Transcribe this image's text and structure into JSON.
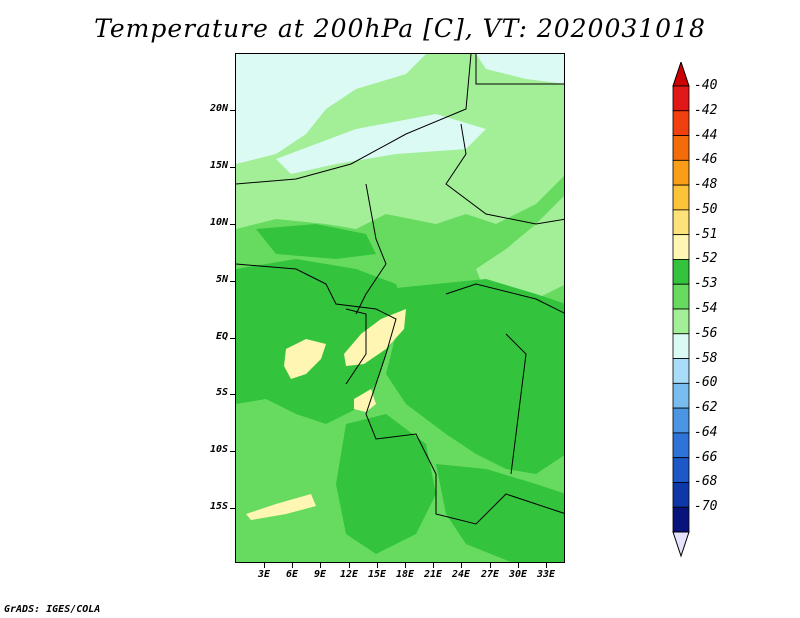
{
  "title": "Temperature at 200hPa [C], VT: 2020031018",
  "credit": "GrADS: IGES/COLA",
  "latitude_labels": [
    "20N",
    "15N",
    "10N",
    "5N",
    "EQ",
    "5S",
    "10S",
    "15S"
  ],
  "longitude_labels": [
    "3E",
    "6E",
    "9E",
    "12E",
    "15E",
    "18E",
    "21E",
    "24E",
    "27E",
    "30E",
    "33E"
  ],
  "colorbar": {
    "labels": [
      "-40",
      "-42",
      "-44",
      "-46",
      "-48",
      "-50",
      "-51",
      "-52",
      "-53",
      "-54",
      "-56",
      "-58",
      "-60",
      "-62",
      "-64",
      "-66",
      "-68",
      "-70"
    ],
    "colors": [
      "#e01818",
      "#f04010",
      "#f46c0a",
      "#f89e18",
      "#fbc23a",
      "#fde27a",
      "#fff6b4",
      "#34c33c",
      "#66db60",
      "#a3ef98",
      "#dcfaf4",
      "#a8dcf8",
      "#78bcf0",
      "#4a96e2",
      "#2e74d8",
      "#1c58c8",
      "#0e38a8",
      "#08147c"
    ],
    "over_color": "#cc0000",
    "under_color": "#e4e4ff"
  },
  "map_colors": {
    "base": "#66db60",
    "darker": "#34c33c",
    "lighter": "#a3ef98",
    "coldest": "#dcfaf4",
    "warm": "#fff6b4"
  }
}
